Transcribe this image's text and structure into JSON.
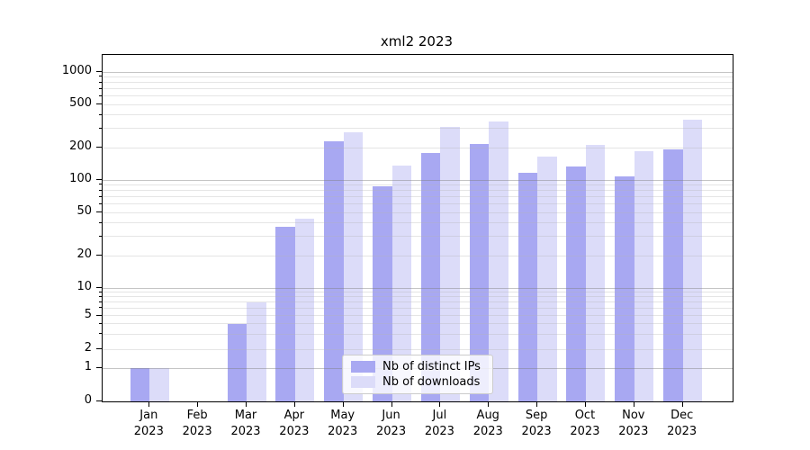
{
  "title": "xml2 2023",
  "chart_data": {
    "type": "bar",
    "title": "xml2 2023",
    "categories": [
      "Jan 2023",
      "Feb 2023",
      "Mar 2023",
      "Apr 2023",
      "May 2023",
      "Jun 2023",
      "Jul 2023",
      "Aug 2023",
      "Sep 2023",
      "Oct 2023",
      "Nov 2023",
      "Dec 2023"
    ],
    "series": [
      {
        "name": "Nb of distinct IPs",
        "color": "#a8a8f2",
        "values": [
          1,
          0,
          4,
          37,
          230,
          88,
          178,
          215,
          116,
          134,
          108,
          192
        ]
      },
      {
        "name": "Nb of downloads",
        "color": "#dcdcf9",
        "values": [
          1,
          0,
          7,
          44,
          275,
          136,
          310,
          345,
          165,
          210,
          185,
          360
        ]
      }
    ],
    "xlabel": "",
    "ylabel": "",
    "yscale": "log-like (symlog, linear below 1)",
    "yticks": [
      0,
      1,
      2,
      5,
      10,
      20,
      50,
      100,
      200,
      500,
      1000
    ],
    "ylim": [
      0,
      1300
    ],
    "grid": true,
    "legend_position": "lower center"
  },
  "legend": {
    "items": [
      {
        "label": "Nb of distinct IPs",
        "color": "#a8a8f2"
      },
      {
        "label": "Nb of downloads",
        "color": "#dcdcf9"
      }
    ]
  }
}
